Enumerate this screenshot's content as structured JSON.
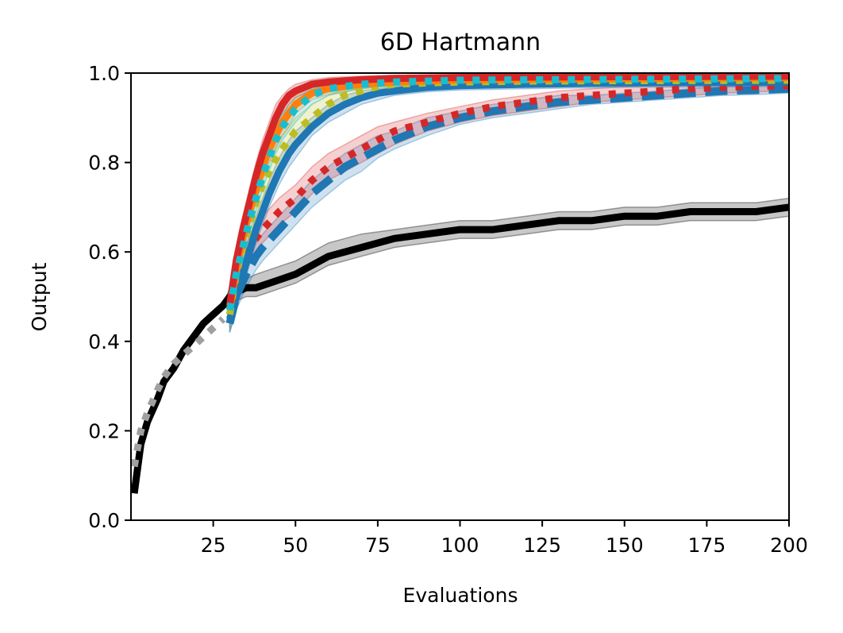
{
  "chart_data": {
    "type": "line",
    "title": "6D Hartmann",
    "xlabel": "Evaluations",
    "ylabel": "Output",
    "xlim": [
      0,
      200
    ],
    "ylim": [
      0.0,
      1.0
    ],
    "xticks": [
      25,
      50,
      75,
      100,
      125,
      150,
      175,
      200
    ],
    "yticks": [
      0.0,
      0.2,
      0.4,
      0.6,
      0.8,
      1.0
    ],
    "xtick_labels": [
      "25",
      "50",
      "75",
      "100",
      "125",
      "150",
      "175",
      "200"
    ],
    "ytick_labels": [
      "0.0",
      "0.2",
      "0.4",
      "0.6",
      "0.8",
      "1.0"
    ],
    "grid": false,
    "series": [
      {
        "name": "black-solid",
        "color": "#000000",
        "style": "solid",
        "band": true,
        "x": [
          1,
          3,
          5,
          8,
          10,
          13,
          16,
          19,
          22,
          25,
          28,
          30,
          32,
          35,
          38,
          42,
          46,
          50,
          55,
          60,
          70,
          80,
          90,
          100,
          110,
          120,
          130,
          140,
          150,
          160,
          170,
          180,
          190,
          200
        ],
        "y": [
          0.06,
          0.17,
          0.22,
          0.27,
          0.31,
          0.34,
          0.38,
          0.41,
          0.44,
          0.46,
          0.48,
          0.5,
          0.51,
          0.52,
          0.52,
          0.53,
          0.54,
          0.55,
          0.57,
          0.59,
          0.61,
          0.63,
          0.64,
          0.65,
          0.65,
          0.66,
          0.67,
          0.67,
          0.68,
          0.68,
          0.69,
          0.69,
          0.69,
          0.7
        ],
        "lower": [
          0.06,
          0.17,
          0.22,
          0.27,
          0.31,
          0.34,
          0.38,
          0.41,
          0.44,
          0.46,
          0.48,
          0.48,
          0.49,
          0.5,
          0.5,
          0.51,
          0.52,
          0.53,
          0.55,
          0.57,
          0.59,
          0.61,
          0.62,
          0.63,
          0.63,
          0.64,
          0.65,
          0.65,
          0.66,
          0.66,
          0.67,
          0.67,
          0.67,
          0.68
        ],
        "upper": [
          0.06,
          0.17,
          0.22,
          0.27,
          0.31,
          0.34,
          0.38,
          0.41,
          0.44,
          0.46,
          0.48,
          0.52,
          0.53,
          0.54,
          0.55,
          0.56,
          0.57,
          0.58,
          0.6,
          0.62,
          0.64,
          0.65,
          0.66,
          0.67,
          0.67,
          0.68,
          0.69,
          0.69,
          0.7,
          0.7,
          0.71,
          0.71,
          0.71,
          0.72
        ]
      },
      {
        "name": "gray-dotted",
        "color": "#a0a0a0",
        "style": "dotted",
        "band": false,
        "x": [
          1,
          3,
          5,
          8,
          10,
          13,
          16,
          19,
          22,
          25,
          28
        ],
        "y": [
          0.12,
          0.2,
          0.24,
          0.29,
          0.32,
          0.35,
          0.37,
          0.39,
          0.41,
          0.43,
          0.45
        ]
      },
      {
        "name": "blue-dashed",
        "color": "#1f77b4",
        "style": "dashed",
        "band": true,
        "x": [
          30,
          32,
          35,
          38,
          40,
          45,
          50,
          55,
          60,
          65,
          70,
          75,
          80,
          90,
          100,
          110,
          120,
          130,
          140,
          150,
          160,
          170,
          180,
          190,
          200
        ],
        "y": [
          0.44,
          0.5,
          0.55,
          0.59,
          0.61,
          0.65,
          0.69,
          0.73,
          0.76,
          0.79,
          0.81,
          0.83,
          0.85,
          0.88,
          0.9,
          0.915,
          0.925,
          0.935,
          0.94,
          0.945,
          0.95,
          0.955,
          0.96,
          0.962,
          0.965
        ],
        "lower": [
          0.42,
          0.47,
          0.52,
          0.56,
          0.58,
          0.62,
          0.66,
          0.7,
          0.73,
          0.76,
          0.78,
          0.81,
          0.83,
          0.86,
          0.885,
          0.9,
          0.91,
          0.92,
          0.93,
          0.935,
          0.94,
          0.945,
          0.95,
          0.952,
          0.955
        ],
        "upper": [
          0.46,
          0.53,
          0.58,
          0.62,
          0.64,
          0.68,
          0.72,
          0.76,
          0.79,
          0.82,
          0.84,
          0.86,
          0.87,
          0.9,
          0.915,
          0.93,
          0.94,
          0.95,
          0.95,
          0.955,
          0.96,
          0.965,
          0.97,
          0.972,
          0.975
        ]
      },
      {
        "name": "red-dotted",
        "color": "#d62728",
        "style": "dotted",
        "band": true,
        "x": [
          30,
          32,
          35,
          38,
          40,
          45,
          50,
          55,
          60,
          65,
          70,
          75,
          80,
          90,
          100,
          110,
          120,
          130,
          140,
          150,
          160,
          170,
          180,
          190,
          200
        ],
        "y": [
          0.46,
          0.53,
          0.59,
          0.63,
          0.65,
          0.69,
          0.72,
          0.76,
          0.79,
          0.81,
          0.83,
          0.85,
          0.87,
          0.89,
          0.91,
          0.925,
          0.935,
          0.945,
          0.95,
          0.955,
          0.96,
          0.965,
          0.968,
          0.97,
          0.972
        ],
        "lower": [
          0.43,
          0.5,
          0.56,
          0.6,
          0.62,
          0.66,
          0.69,
          0.73,
          0.76,
          0.78,
          0.8,
          0.82,
          0.84,
          0.87,
          0.89,
          0.905,
          0.915,
          0.925,
          0.935,
          0.94,
          0.945,
          0.95,
          0.955,
          0.958,
          0.96
        ],
        "upper": [
          0.49,
          0.56,
          0.62,
          0.66,
          0.68,
          0.72,
          0.75,
          0.79,
          0.82,
          0.84,
          0.86,
          0.88,
          0.89,
          0.91,
          0.925,
          0.94,
          0.95,
          0.96,
          0.965,
          0.97,
          0.972,
          0.975,
          0.978,
          0.98,
          0.982
        ]
      },
      {
        "name": "blue-solid",
        "color": "#1f77b4",
        "style": "solid",
        "band": true,
        "x": [
          30,
          32,
          34,
          36,
          38,
          40,
          42,
          45,
          48,
          50,
          55,
          60,
          65,
          70,
          75,
          80,
          90,
          100,
          120,
          150,
          200
        ],
        "y": [
          0.45,
          0.5,
          0.55,
          0.6,
          0.65,
          0.69,
          0.73,
          0.78,
          0.82,
          0.84,
          0.88,
          0.91,
          0.93,
          0.945,
          0.955,
          0.96,
          0.968,
          0.972,
          0.975,
          0.978,
          0.98
        ],
        "lower": [
          0.42,
          0.47,
          0.52,
          0.57,
          0.62,
          0.66,
          0.7,
          0.75,
          0.79,
          0.81,
          0.86,
          0.89,
          0.91,
          0.93,
          0.94,
          0.95,
          0.958,
          0.962,
          0.965,
          0.968,
          0.97
        ],
        "upper": [
          0.48,
          0.53,
          0.58,
          0.63,
          0.68,
          0.72,
          0.76,
          0.81,
          0.85,
          0.87,
          0.9,
          0.93,
          0.95,
          0.96,
          0.965,
          0.97,
          0.975,
          0.98,
          0.982,
          0.985,
          0.988
        ]
      },
      {
        "name": "olive-dotted",
        "color": "#bcbd22",
        "style": "dotted",
        "band": true,
        "x": [
          30,
          32,
          34,
          36,
          38,
          40,
          42,
          45,
          48,
          50,
          55,
          60,
          65,
          70,
          75,
          80,
          90,
          100,
          120,
          150,
          200
        ],
        "y": [
          0.46,
          0.55,
          0.61,
          0.66,
          0.71,
          0.75,
          0.78,
          0.82,
          0.85,
          0.87,
          0.9,
          0.93,
          0.95,
          0.96,
          0.97,
          0.975,
          0.978,
          0.98,
          0.982,
          0.983,
          0.984
        ],
        "lower": [
          0.43,
          0.52,
          0.58,
          0.63,
          0.68,
          0.72,
          0.75,
          0.79,
          0.82,
          0.84,
          0.87,
          0.91,
          0.93,
          0.945,
          0.955,
          0.962,
          0.968,
          0.97,
          0.972,
          0.973,
          0.974
        ],
        "upper": [
          0.49,
          0.58,
          0.64,
          0.69,
          0.74,
          0.78,
          0.81,
          0.85,
          0.88,
          0.9,
          0.93,
          0.95,
          0.965,
          0.975,
          0.982,
          0.986,
          0.988,
          0.99,
          0.99,
          0.992,
          0.993
        ]
      },
      {
        "name": "orange-solid",
        "color": "#ff7f0e",
        "style": "solid",
        "band": true,
        "x": [
          30,
          32,
          34,
          36,
          38,
          40,
          42,
          44,
          46,
          48,
          50,
          55,
          60,
          70,
          80,
          100,
          150,
          200
        ],
        "y": [
          0.47,
          0.56,
          0.63,
          0.69,
          0.74,
          0.79,
          0.83,
          0.86,
          0.89,
          0.91,
          0.93,
          0.955,
          0.965,
          0.975,
          0.98,
          0.985,
          0.988,
          0.99
        ],
        "lower": [
          0.44,
          0.53,
          0.6,
          0.66,
          0.71,
          0.76,
          0.8,
          0.83,
          0.86,
          0.88,
          0.91,
          0.94,
          0.952,
          0.965,
          0.972,
          0.977,
          0.98,
          0.982
        ],
        "upper": [
          0.5,
          0.59,
          0.66,
          0.72,
          0.77,
          0.82,
          0.86,
          0.89,
          0.92,
          0.94,
          0.95,
          0.97,
          0.978,
          0.985,
          0.988,
          0.99,
          0.993,
          0.995
        ]
      },
      {
        "name": "red-solid",
        "color": "#d62728",
        "style": "solid",
        "band": true,
        "x": [
          30,
          32,
          34,
          36,
          38,
          40,
          42,
          44,
          46,
          48,
          50,
          55,
          60,
          70,
          80,
          100,
          150,
          200
        ],
        "y": [
          0.48,
          0.58,
          0.65,
          0.71,
          0.77,
          0.82,
          0.86,
          0.9,
          0.93,
          0.95,
          0.96,
          0.975,
          0.98,
          0.985,
          0.988,
          0.99,
          0.992,
          0.993
        ],
        "lower": [
          0.45,
          0.55,
          0.62,
          0.68,
          0.74,
          0.79,
          0.83,
          0.87,
          0.9,
          0.93,
          0.945,
          0.962,
          0.97,
          0.976,
          0.98,
          0.983,
          0.985,
          0.986
        ],
        "upper": [
          0.51,
          0.61,
          0.68,
          0.74,
          0.8,
          0.85,
          0.89,
          0.93,
          0.95,
          0.965,
          0.975,
          0.985,
          0.99,
          0.993,
          0.995,
          0.997,
          0.998,
          0.999
        ]
      },
      {
        "name": "cyan-dotted",
        "color": "#17becf",
        "style": "dotted",
        "band": true,
        "x": [
          30,
          32,
          34,
          36,
          38,
          40,
          42,
          44,
          46,
          48,
          50,
          55,
          60,
          70,
          80,
          100,
          150,
          200
        ],
        "y": [
          0.47,
          0.55,
          0.61,
          0.67,
          0.72,
          0.77,
          0.81,
          0.85,
          0.88,
          0.9,
          0.92,
          0.95,
          0.965,
          0.975,
          0.98,
          0.984,
          0.986,
          0.988
        ],
        "lower": [
          0.44,
          0.52,
          0.58,
          0.64,
          0.69,
          0.74,
          0.78,
          0.82,
          0.85,
          0.87,
          0.89,
          0.93,
          0.95,
          0.965,
          0.972,
          0.976,
          0.978,
          0.98
        ],
        "upper": [
          0.5,
          0.58,
          0.64,
          0.7,
          0.75,
          0.8,
          0.84,
          0.88,
          0.91,
          0.93,
          0.945,
          0.965,
          0.975,
          0.985,
          0.988,
          0.99,
          0.992,
          0.994
        ]
      }
    ]
  }
}
